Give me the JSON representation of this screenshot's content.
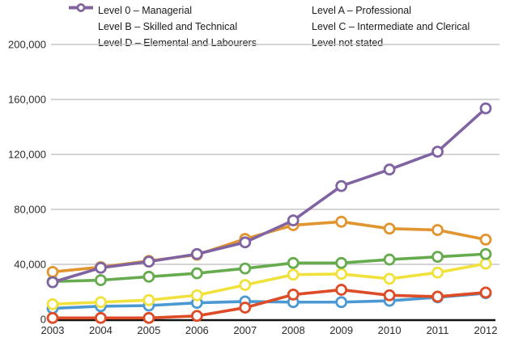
{
  "chart_data": {
    "type": "line",
    "title": "",
    "xlabel": "",
    "ylabel": "",
    "x": [
      "2003",
      "2004",
      "2005",
      "2006",
      "2007",
      "2008",
      "2009",
      "2010",
      "2011",
      "2012"
    ],
    "series": [
      {
        "name": "Level 0 – Managerial",
        "color": "#4a99d2",
        "values": [
          8000,
          9500,
          10000,
          12000,
          13000,
          12500,
          12500,
          13500,
          16000,
          19000
        ]
      },
      {
        "name": "Level A – Professional",
        "color": "#67ab4f",
        "values": [
          27500,
          28500,
          31000,
          33500,
          37000,
          41000,
          41000,
          43500,
          45500,
          47500
        ]
      },
      {
        "name": "Level B – Skilled and Technical",
        "color": "#f0e13d",
        "values": [
          11000,
          12500,
          14000,
          17500,
          25000,
          32500,
          33000,
          29500,
          34000,
          40500
        ]
      },
      {
        "name": "Level C – Intermediate and Clerical",
        "color": "#e2952f",
        "values": [
          34500,
          38000,
          42500,
          47000,
          58500,
          68500,
          71000,
          66000,
          65000,
          58000
        ]
      },
      {
        "name": "Level D – Elemental and Labourers",
        "color": "#dd4c27",
        "values": [
          1000,
          1000,
          1000,
          2500,
          8500,
          18000,
          21500,
          17500,
          16500,
          19500
        ]
      },
      {
        "name": "Level not stated",
        "color": "#8064a2",
        "values": [
          27000,
          37500,
          42000,
          47500,
          56000,
          72000,
          97000,
          109000,
          122000,
          153500
        ]
      }
    ],
    "legend_rows": [
      {
        "left": 0,
        "right": 1
      },
      {
        "left": 2,
        "right": 3
      },
      {
        "left": 4,
        "right": 5
      }
    ],
    "draw_order": [
      0,
      2,
      1,
      3,
      4,
      5
    ],
    "ylim": [
      0,
      200000
    ],
    "yticks": [
      0,
      40000,
      80000,
      120000,
      160000,
      200000
    ],
    "ytick_labels": [
      "0",
      "40,000",
      "80,000",
      "120,000",
      "160,000",
      "200,000"
    ],
    "grid": true,
    "legend_position": "top"
  },
  "style_colors": {
    "gridline": "#c6c6c6",
    "axis_line": "#111111",
    "tick_text": "#2b2b2b"
  }
}
